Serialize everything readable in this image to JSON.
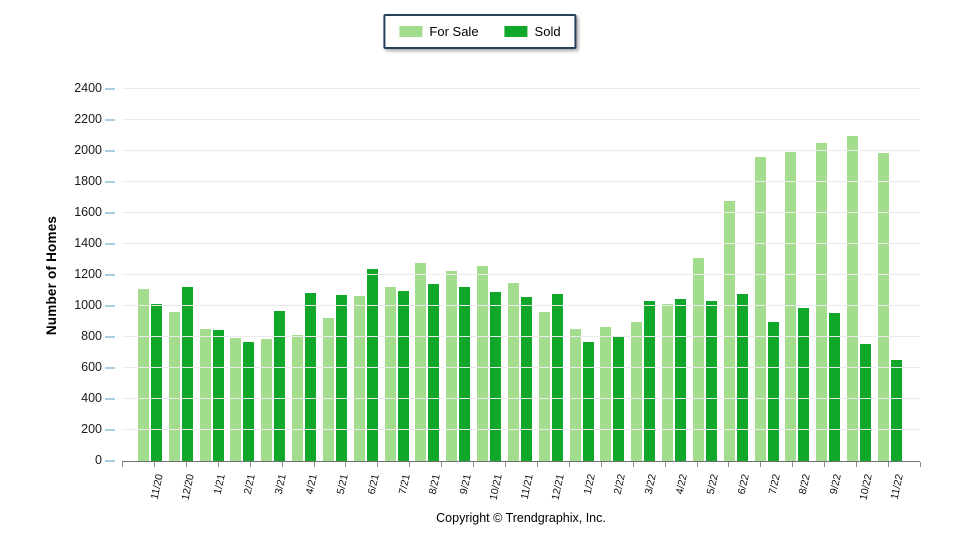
{
  "legend": {
    "position": "top-center"
  },
  "footer": {
    "copyright": "Copyright © Trendgraphix, Inc."
  },
  "chart_data": {
    "type": "bar",
    "title": "",
    "xlabel": "",
    "ylabel": "Number of Homes",
    "ylim": [
      0,
      2400
    ],
    "ytick_step": 200,
    "grid": true,
    "legend_position": "top-center",
    "categories": [
      "11/20",
      "12/20",
      "1/21",
      "2/21",
      "3/21",
      "4/21",
      "5/21",
      "6/21",
      "7/21",
      "8/21",
      "9/21",
      "10/21",
      "11/21",
      "12/21",
      "1/22",
      "2/22",
      "3/22",
      "4/22",
      "5/22",
      "6/22",
      "7/22",
      "8/22",
      "9/22",
      "10/22",
      "11/22"
    ],
    "series": [
      {
        "name": "For Sale",
        "color": "#a1dd8d",
        "values": [
          1110,
          960,
          850,
          795,
          790,
          815,
          925,
          1065,
          1125,
          1275,
          1225,
          1260,
          1150,
          960,
          850,
          865,
          895,
          1015,
          1310,
          1680,
          1960,
          1995,
          2050,
          2095,
          1985
        ]
      },
      {
        "name": "Sold",
        "color": "#0fa82b",
        "values": [
          1010,
          1125,
          845,
          770,
          965,
          1085,
          1070,
          1240,
          1100,
          1145,
          1125,
          1090,
          1055,
          1075,
          770,
          805,
          1030,
          1045,
          1030,
          1080,
          895,
          985,
          955,
          755,
          650
        ]
      }
    ]
  }
}
